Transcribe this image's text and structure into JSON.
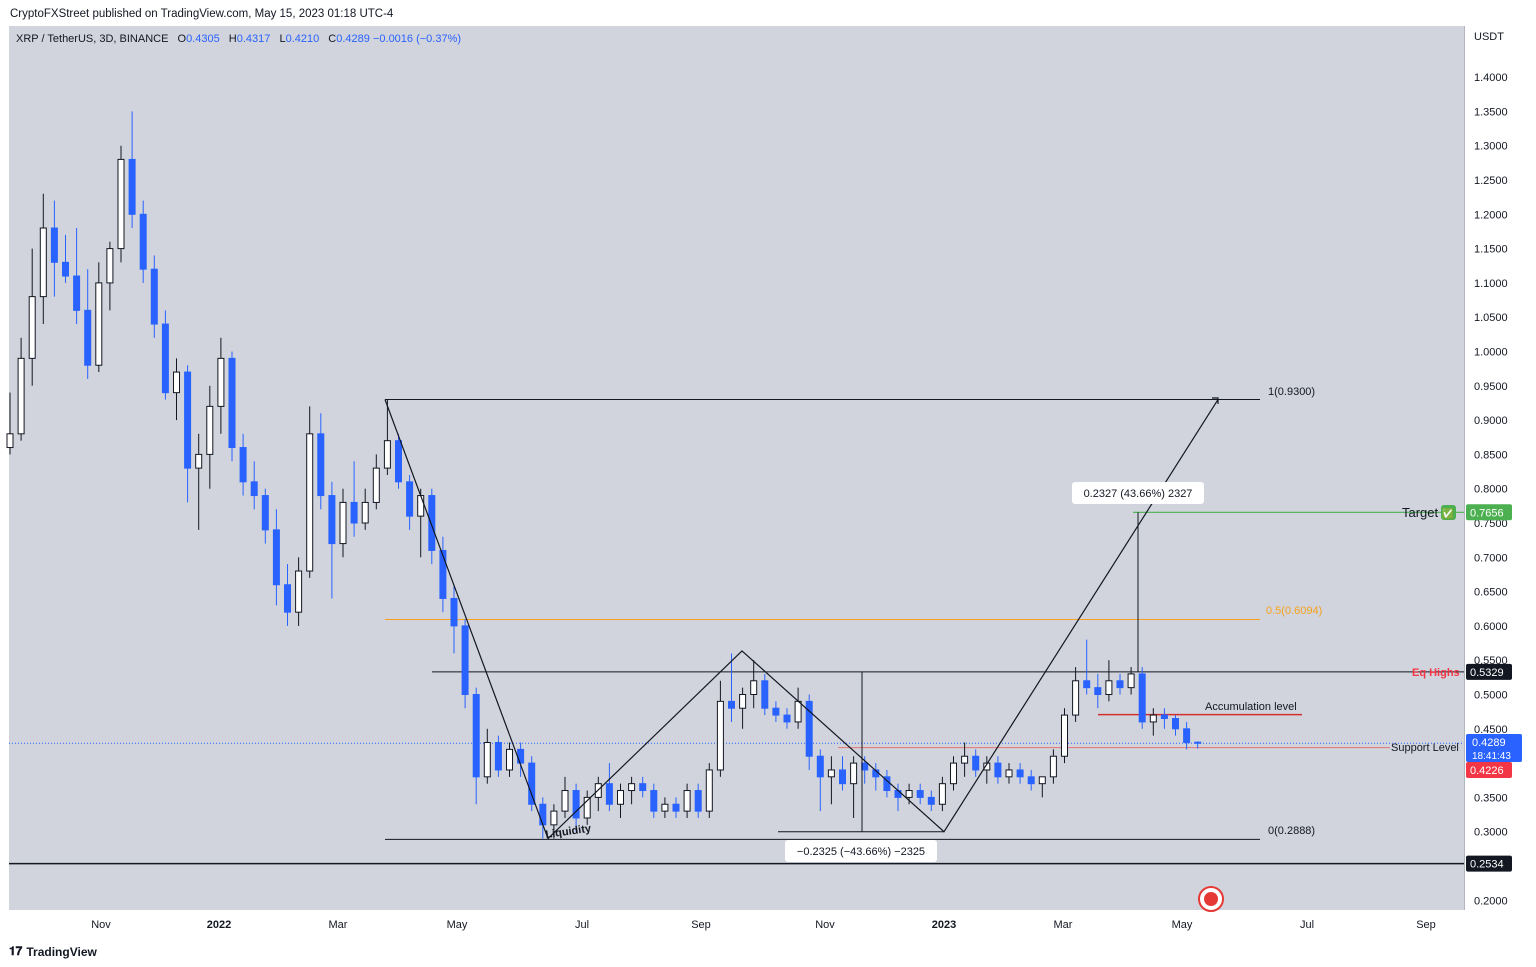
{
  "header": {
    "published": "CryptoFXStreet published on TradingView.com, May 15, 2023 01:18 UTC-4"
  },
  "legend": {
    "symbol": "XRP / TetherUS, 3D, BINANCE",
    "o_label": "O",
    "o": "0.4305",
    "h_label": "H",
    "h": "0.4317",
    "l_label": "L",
    "l": "0.4210",
    "c_label": "C",
    "c": "0.4289",
    "change": "−0.0016 (−0.37%)"
  },
  "footer": {
    "brand": "TradingView",
    "logo": "tv-logo-icon"
  },
  "colors": {
    "up": "#ffffff",
    "down": "#2962ff",
    "target": "#4caf50",
    "eq_highs": "#f23645",
    "fib": "#f7a21b",
    "accum": "#d32f2f",
    "support": "#e57373"
  },
  "chart_data": {
    "type": "candlestick",
    "currency_label": "USDT",
    "y_ticks": [
      "1.4000",
      "1.3500",
      "1.3000",
      "1.2500",
      "1.2000",
      "1.1500",
      "1.1000",
      "1.0500",
      "1.0000",
      "0.9500",
      "0.9000",
      "0.8500",
      "0.8000",
      "0.7500",
      "0.7000",
      "0.6500",
      "0.6000",
      "0.5500",
      "0.5000",
      "0.4500",
      "0.3500",
      "0.3000",
      "0.2000"
    ],
    "x_ticks": [
      "Nov",
      "2022",
      "Mar",
      "May",
      "Jul",
      "Sep",
      "Nov",
      "2023",
      "Mar",
      "May",
      "Jul",
      "Sep"
    ],
    "price_labels": {
      "last": "0.4289",
      "countdown": "18:41:43",
      "support": "0.4226",
      "eq_highs": "0.5329",
      "target": "0.7656",
      "base": "0.2534"
    },
    "annotations": {
      "fib_1": "1(0.9300)",
      "fib_05": "0.5(0.6094)",
      "fib_0": "0(0.2888)",
      "eq_highs": "Eq Highs",
      "target": "Target",
      "target_check": "✅",
      "accumulation": "Accumulation level",
      "support": "Support Level",
      "liquidity": "Liquidity",
      "measure_up": "0.2327 (43.66%) 2327",
      "measure_down": "−0.2325 (−43.66%) −2325"
    },
    "series": [
      {
        "x": 1,
        "o": 0.86,
        "h": 0.94,
        "l": 0.85,
        "c": 0.88
      },
      {
        "x": 2,
        "o": 0.88,
        "h": 1.02,
        "l": 0.87,
        "c": 0.99
      },
      {
        "x": 3,
        "o": 0.99,
        "h": 1.15,
        "l": 0.95,
        "c": 1.08
      },
      {
        "x": 4,
        "o": 1.08,
        "h": 1.23,
        "l": 1.04,
        "c": 1.18
      },
      {
        "x": 5,
        "o": 1.18,
        "h": 1.22,
        "l": 1.08,
        "c": 1.13
      },
      {
        "x": 6,
        "o": 1.13,
        "h": 1.17,
        "l": 1.1,
        "c": 1.11
      },
      {
        "x": 7,
        "o": 1.11,
        "h": 1.18,
        "l": 1.04,
        "c": 1.06
      },
      {
        "x": 8,
        "o": 1.06,
        "h": 1.12,
        "l": 0.96,
        "c": 0.98
      },
      {
        "x": 9,
        "o": 0.98,
        "h": 1.13,
        "l": 0.97,
        "c": 1.1
      },
      {
        "x": 10,
        "o": 1.1,
        "h": 1.16,
        "l": 1.06,
        "c": 1.15
      },
      {
        "x": 11,
        "o": 1.15,
        "h": 1.3,
        "l": 1.13,
        "c": 1.28
      },
      {
        "x": 12,
        "o": 1.28,
        "h": 1.35,
        "l": 1.18,
        "c": 1.2
      },
      {
        "x": 13,
        "o": 1.2,
        "h": 1.22,
        "l": 1.1,
        "c": 1.12
      },
      {
        "x": 14,
        "o": 1.12,
        "h": 1.14,
        "l": 1.02,
        "c": 1.04
      },
      {
        "x": 15,
        "o": 1.04,
        "h": 1.06,
        "l": 0.93,
        "c": 0.94
      },
      {
        "x": 16,
        "o": 0.94,
        "h": 0.99,
        "l": 0.9,
        "c": 0.97
      },
      {
        "x": 17,
        "o": 0.97,
        "h": 0.98,
        "l": 0.78,
        "c": 0.83
      },
      {
        "x": 18,
        "o": 0.83,
        "h": 0.88,
        "l": 0.74,
        "c": 0.85
      },
      {
        "x": 19,
        "o": 0.85,
        "h": 0.95,
        "l": 0.8,
        "c": 0.92
      },
      {
        "x": 20,
        "o": 0.92,
        "h": 1.02,
        "l": 0.88,
        "c": 0.99
      },
      {
        "x": 21,
        "o": 0.99,
        "h": 1.0,
        "l": 0.84,
        "c": 0.86
      },
      {
        "x": 22,
        "o": 0.86,
        "h": 0.88,
        "l": 0.79,
        "c": 0.81
      },
      {
        "x": 23,
        "o": 0.81,
        "h": 0.84,
        "l": 0.77,
        "c": 0.79
      },
      {
        "x": 24,
        "o": 0.79,
        "h": 0.8,
        "l": 0.72,
        "c": 0.74
      },
      {
        "x": 25,
        "o": 0.74,
        "h": 0.77,
        "l": 0.63,
        "c": 0.66
      },
      {
        "x": 26,
        "o": 0.66,
        "h": 0.69,
        "l": 0.6,
        "c": 0.62
      },
      {
        "x": 27,
        "o": 0.62,
        "h": 0.7,
        "l": 0.6,
        "c": 0.68
      },
      {
        "x": 28,
        "o": 0.68,
        "h": 0.92,
        "l": 0.67,
        "c": 0.88
      },
      {
        "x": 29,
        "o": 0.88,
        "h": 0.91,
        "l": 0.77,
        "c": 0.79
      },
      {
        "x": 30,
        "o": 0.79,
        "h": 0.81,
        "l": 0.64,
        "c": 0.72
      },
      {
        "x": 31,
        "o": 0.72,
        "h": 0.8,
        "l": 0.7,
        "c": 0.78
      },
      {
        "x": 32,
        "o": 0.78,
        "h": 0.84,
        "l": 0.73,
        "c": 0.75
      },
      {
        "x": 33,
        "o": 0.75,
        "h": 0.8,
        "l": 0.74,
        "c": 0.78
      },
      {
        "x": 34,
        "o": 0.78,
        "h": 0.85,
        "l": 0.77,
        "c": 0.83
      },
      {
        "x": 35,
        "o": 0.83,
        "h": 0.93,
        "l": 0.82,
        "c": 0.87
      },
      {
        "x": 36,
        "o": 0.87,
        "h": 0.88,
        "l": 0.8,
        "c": 0.81
      },
      {
        "x": 37,
        "o": 0.81,
        "h": 0.82,
        "l": 0.74,
        "c": 0.76
      },
      {
        "x": 38,
        "o": 0.76,
        "h": 0.8,
        "l": 0.7,
        "c": 0.79
      },
      {
        "x": 39,
        "o": 0.79,
        "h": 0.8,
        "l": 0.69,
        "c": 0.71
      },
      {
        "x": 40,
        "o": 0.71,
        "h": 0.73,
        "l": 0.62,
        "c": 0.64
      },
      {
        "x": 41,
        "o": 0.64,
        "h": 0.66,
        "l": 0.56,
        "c": 0.6
      },
      {
        "x": 42,
        "o": 0.6,
        "h": 0.61,
        "l": 0.48,
        "c": 0.5
      },
      {
        "x": 43,
        "o": 0.5,
        "h": 0.51,
        "l": 0.34,
        "c": 0.38
      },
      {
        "x": 44,
        "o": 0.38,
        "h": 0.45,
        "l": 0.37,
        "c": 0.43
      },
      {
        "x": 45,
        "o": 0.43,
        "h": 0.44,
        "l": 0.38,
        "c": 0.39
      },
      {
        "x": 46,
        "o": 0.39,
        "h": 0.43,
        "l": 0.38,
        "c": 0.42
      },
      {
        "x": 47,
        "o": 0.42,
        "h": 0.43,
        "l": 0.38,
        "c": 0.4
      },
      {
        "x": 48,
        "o": 0.4,
        "h": 0.41,
        "l": 0.33,
        "c": 0.34
      },
      {
        "x": 49,
        "o": 0.34,
        "h": 0.35,
        "l": 0.29,
        "c": 0.31
      },
      {
        "x": 50,
        "o": 0.31,
        "h": 0.34,
        "l": 0.29,
        "c": 0.33
      },
      {
        "x": 51,
        "o": 0.33,
        "h": 0.38,
        "l": 0.32,
        "c": 0.36
      },
      {
        "x": 52,
        "o": 0.36,
        "h": 0.37,
        "l": 0.3,
        "c": 0.32
      },
      {
        "x": 53,
        "o": 0.32,
        "h": 0.36,
        "l": 0.31,
        "c": 0.35
      },
      {
        "x": 54,
        "o": 0.35,
        "h": 0.38,
        "l": 0.33,
        "c": 0.37
      },
      {
        "x": 55,
        "o": 0.37,
        "h": 0.4,
        "l": 0.33,
        "c": 0.34
      },
      {
        "x": 56,
        "o": 0.34,
        "h": 0.37,
        "l": 0.32,
        "c": 0.36
      },
      {
        "x": 57,
        "o": 0.36,
        "h": 0.38,
        "l": 0.34,
        "c": 0.37
      },
      {
        "x": 58,
        "o": 0.37,
        "h": 0.38,
        "l": 0.35,
        "c": 0.36
      },
      {
        "x": 59,
        "o": 0.36,
        "h": 0.37,
        "l": 0.32,
        "c": 0.33
      },
      {
        "x": 60,
        "o": 0.33,
        "h": 0.35,
        "l": 0.32,
        "c": 0.34
      },
      {
        "x": 61,
        "o": 0.34,
        "h": 0.35,
        "l": 0.32,
        "c": 0.33
      },
      {
        "x": 62,
        "o": 0.33,
        "h": 0.37,
        "l": 0.32,
        "c": 0.36
      },
      {
        "x": 63,
        "o": 0.36,
        "h": 0.37,
        "l": 0.32,
        "c": 0.33
      },
      {
        "x": 64,
        "o": 0.33,
        "h": 0.4,
        "l": 0.32,
        "c": 0.39
      },
      {
        "x": 65,
        "o": 0.39,
        "h": 0.52,
        "l": 0.38,
        "c": 0.49
      },
      {
        "x": 66,
        "o": 0.49,
        "h": 0.56,
        "l": 0.46,
        "c": 0.48
      },
      {
        "x": 67,
        "o": 0.48,
        "h": 0.51,
        "l": 0.45,
        "c": 0.5
      },
      {
        "x": 68,
        "o": 0.5,
        "h": 0.55,
        "l": 0.48,
        "c": 0.52
      },
      {
        "x": 69,
        "o": 0.52,
        "h": 0.53,
        "l": 0.47,
        "c": 0.48
      },
      {
        "x": 70,
        "o": 0.48,
        "h": 0.49,
        "l": 0.46,
        "c": 0.47
      },
      {
        "x": 71,
        "o": 0.47,
        "h": 0.48,
        "l": 0.45,
        "c": 0.46
      },
      {
        "x": 72,
        "o": 0.46,
        "h": 0.51,
        "l": 0.45,
        "c": 0.49
      },
      {
        "x": 73,
        "o": 0.49,
        "h": 0.5,
        "l": 0.39,
        "c": 0.41
      },
      {
        "x": 74,
        "o": 0.41,
        "h": 0.42,
        "l": 0.33,
        "c": 0.38
      },
      {
        "x": 75,
        "o": 0.38,
        "h": 0.41,
        "l": 0.34,
        "c": 0.39
      },
      {
        "x": 76,
        "o": 0.39,
        "h": 0.41,
        "l": 0.36,
        "c": 0.37
      },
      {
        "x": 77,
        "o": 0.37,
        "h": 0.41,
        "l": 0.32,
        "c": 0.4
      },
      {
        "x": 78,
        "o": 0.4,
        "h": 0.41,
        "l": 0.37,
        "c": 0.39
      },
      {
        "x": 79,
        "o": 0.39,
        "h": 0.4,
        "l": 0.36,
        "c": 0.38
      },
      {
        "x": 80,
        "o": 0.38,
        "h": 0.39,
        "l": 0.35,
        "c": 0.36
      },
      {
        "x": 81,
        "o": 0.36,
        "h": 0.37,
        "l": 0.33,
        "c": 0.35
      },
      {
        "x": 82,
        "o": 0.35,
        "h": 0.37,
        "l": 0.34,
        "c": 0.36
      },
      {
        "x": 83,
        "o": 0.36,
        "h": 0.37,
        "l": 0.34,
        "c": 0.35
      },
      {
        "x": 84,
        "o": 0.35,
        "h": 0.36,
        "l": 0.33,
        "c": 0.34
      },
      {
        "x": 85,
        "o": 0.34,
        "h": 0.38,
        "l": 0.33,
        "c": 0.37
      },
      {
        "x": 86,
        "o": 0.37,
        "h": 0.41,
        "l": 0.36,
        "c": 0.4
      },
      {
        "x": 87,
        "o": 0.4,
        "h": 0.43,
        "l": 0.38,
        "c": 0.41
      },
      {
        "x": 88,
        "o": 0.41,
        "h": 0.42,
        "l": 0.38,
        "c": 0.39
      },
      {
        "x": 89,
        "o": 0.39,
        "h": 0.41,
        "l": 0.37,
        "c": 0.4
      },
      {
        "x": 90,
        "o": 0.4,
        "h": 0.41,
        "l": 0.37,
        "c": 0.38
      },
      {
        "x": 91,
        "o": 0.38,
        "h": 0.4,
        "l": 0.37,
        "c": 0.39
      },
      {
        "x": 92,
        "o": 0.39,
        "h": 0.4,
        "l": 0.37,
        "c": 0.38
      },
      {
        "x": 93,
        "o": 0.38,
        "h": 0.39,
        "l": 0.36,
        "c": 0.37
      },
      {
        "x": 94,
        "o": 0.37,
        "h": 0.38,
        "l": 0.35,
        "c": 0.38
      },
      {
        "x": 95,
        "o": 0.38,
        "h": 0.42,
        "l": 0.37,
        "c": 0.41
      },
      {
        "x": 96,
        "o": 0.41,
        "h": 0.48,
        "l": 0.4,
        "c": 0.47
      },
      {
        "x": 97,
        "o": 0.47,
        "h": 0.54,
        "l": 0.46,
        "c": 0.52
      },
      {
        "x": 98,
        "o": 0.52,
        "h": 0.58,
        "l": 0.5,
        "c": 0.51
      },
      {
        "x": 99,
        "o": 0.51,
        "h": 0.53,
        "l": 0.48,
        "c": 0.5
      },
      {
        "x": 100,
        "o": 0.5,
        "h": 0.55,
        "l": 0.49,
        "c": 0.52
      },
      {
        "x": 101,
        "o": 0.52,
        "h": 0.53,
        "l": 0.5,
        "c": 0.51
      },
      {
        "x": 102,
        "o": 0.51,
        "h": 0.54,
        "l": 0.5,
        "c": 0.53
      },
      {
        "x": 103,
        "o": 0.53,
        "h": 0.54,
        "l": 0.45,
        "c": 0.46
      },
      {
        "x": 104,
        "o": 0.46,
        "h": 0.48,
        "l": 0.44,
        "c": 0.47
      },
      {
        "x": 105,
        "o": 0.47,
        "h": 0.48,
        "l": 0.45,
        "c": 0.465
      },
      {
        "x": 106,
        "o": 0.465,
        "h": 0.47,
        "l": 0.44,
        "c": 0.45
      },
      {
        "x": 107,
        "o": 0.45,
        "h": 0.46,
        "l": 0.42,
        "c": 0.43
      },
      {
        "x": 108,
        "o": 0.4305,
        "h": 0.4317,
        "l": 0.421,
        "c": 0.4289
      }
    ]
  }
}
